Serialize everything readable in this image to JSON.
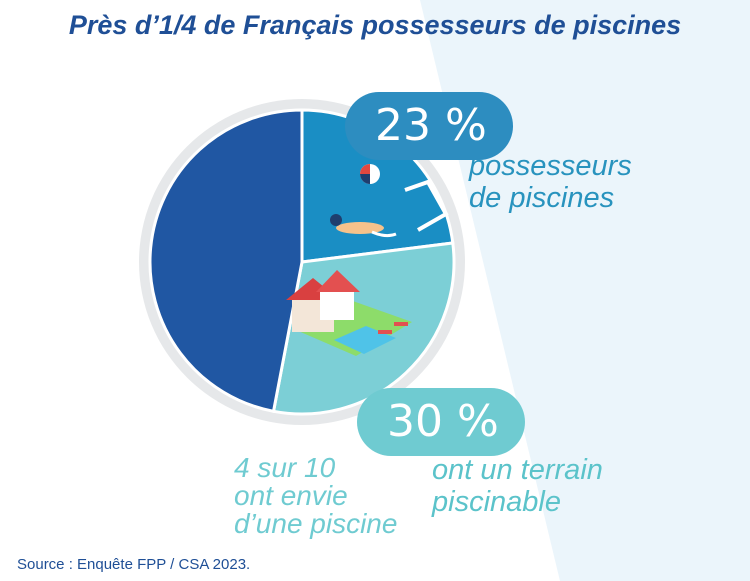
{
  "title": "Près d’1/4 de Français possesseurs de piscines",
  "source": "Source : Enquête FPP / CSA 2023.",
  "colors": {
    "owners": "#1a8ec4",
    "land": "#7ccfd6",
    "other": "#2057a3",
    "title": "#1f4f96",
    "ring": "#e6e8ea"
  },
  "icons": [
    "beach-ball-icon",
    "pool-ladder-icon",
    "swimmer-icon",
    "house-with-pool-icon"
  ],
  "chart_data": {
    "type": "pie",
    "slices": [
      {
        "value": 23,
        "label": "23 %",
        "caption": "possesseurs de piscines"
      },
      {
        "value": 30,
        "label": "30 %",
        "caption": "ont un terrain piscinable"
      },
      {
        "value": 47
      }
    ],
    "annotation": "4 sur 10 ont envie d’une piscine"
  },
  "labels": {
    "owners_line1": "possesseurs",
    "owners_line2": "de piscines",
    "land_line1": "ont un terrain",
    "land_line2": "piscinable",
    "desire_line1": "4 sur 10",
    "desire_line2": "ont envie",
    "desire_line3": "d’une piscine"
  }
}
